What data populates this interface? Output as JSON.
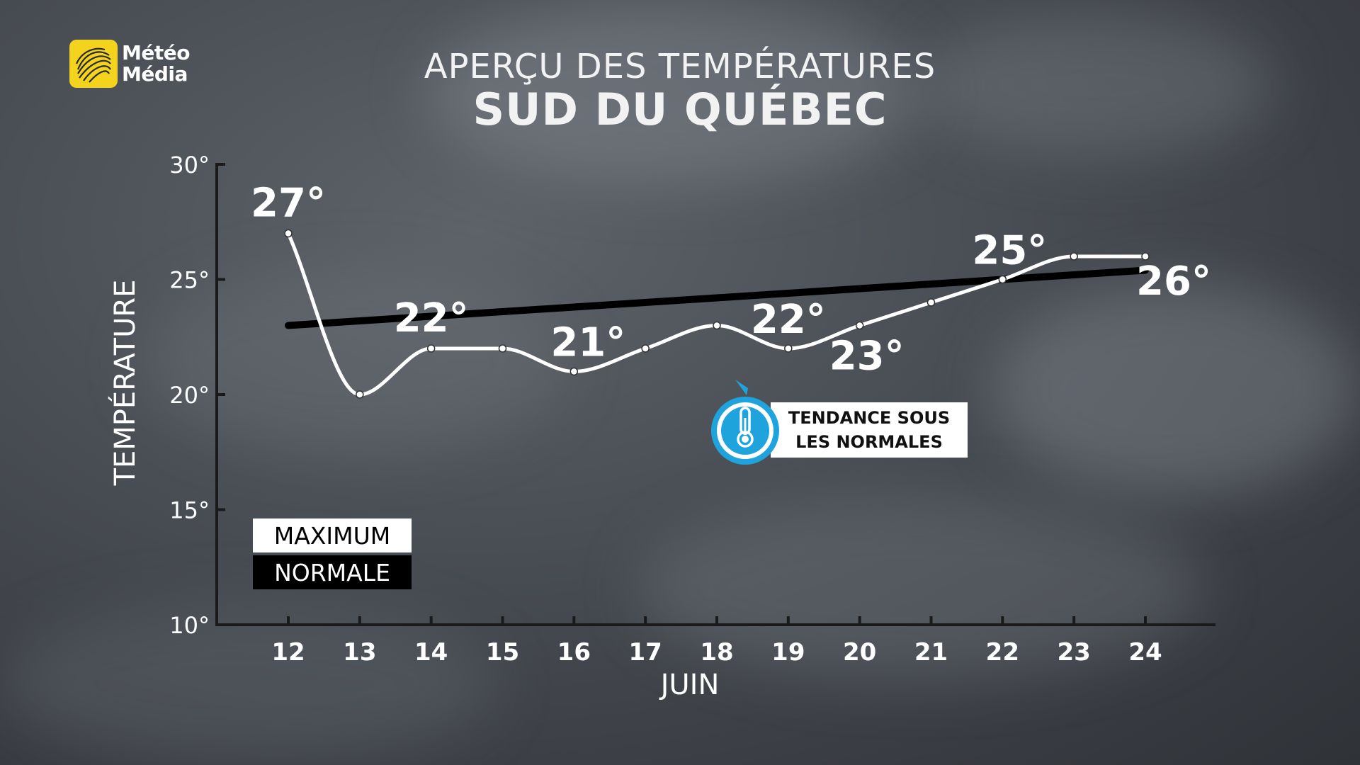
{
  "header": {
    "brand_line1": "Météo",
    "brand_line2": "Média",
    "title_line1": "APERÇU DES TEMPÉRATURES",
    "title_line2": "SUD DU QUÉBEC"
  },
  "legend": {
    "maximum": "MAXIMUM",
    "normale": "NORMALE"
  },
  "badge": {
    "line1": "TENDANCE SOUS",
    "line2": "LES NORMALES",
    "icon": "thermometer-icon",
    "color": "#1ea3dc"
  },
  "colors": {
    "maximum_line": "#ffffff",
    "normale_line": "#000000",
    "logo": "#f3d31d"
  },
  "chart_data": {
    "type": "line",
    "title": "APERÇU DES TEMPÉRATURES — SUD DU QUÉBEC",
    "xlabel": "JUIN",
    "ylabel": "TEMPÉRATURE",
    "ylim": [
      10,
      30
    ],
    "yticks": [
      "10°",
      "15°",
      "20°",
      "25°",
      "30°"
    ],
    "yticks_values": [
      10,
      15,
      20,
      25,
      30
    ],
    "categories": [
      "12",
      "13",
      "14",
      "15",
      "16",
      "17",
      "18",
      "19",
      "20",
      "21",
      "22",
      "23",
      "24"
    ],
    "series": [
      {
        "name": "MAXIMUM",
        "values": [
          27,
          20,
          22,
          22,
          21,
          22,
          23,
          22,
          23,
          24,
          25,
          26,
          26
        ]
      },
      {
        "name": "NORMALE",
        "values": [
          23,
          23.2,
          23.4,
          23.6,
          23.8,
          24.0,
          24.2,
          24.4,
          24.6,
          24.8,
          25.0,
          25.2,
          25.4
        ]
      }
    ],
    "data_labels": [
      {
        "label": "27°",
        "index": 0
      },
      {
        "label": "22°",
        "index": 2
      },
      {
        "label": "21°",
        "index": 4
      },
      {
        "label": "22°",
        "index": 7
      },
      {
        "label": "23°",
        "index": 8
      },
      {
        "label": "25°",
        "index": 10
      },
      {
        "label": "26°",
        "index": 12
      }
    ],
    "grid": false,
    "legend_position": "bottom-left"
  }
}
